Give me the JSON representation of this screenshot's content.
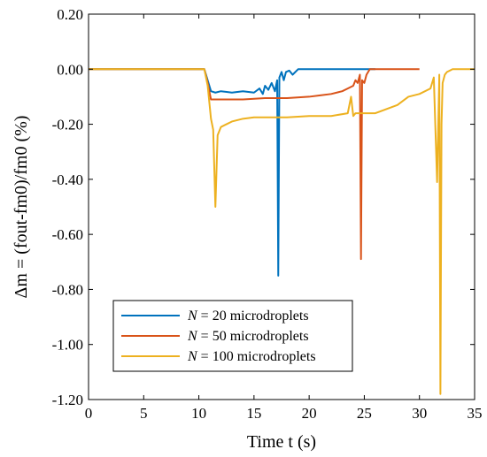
{
  "chart_data": {
    "type": "line",
    "title": "",
    "xlabel": "Time t (s)",
    "ylabel": "Δm = (fout-fm0)/fm0 (%)",
    "xlim": [
      0,
      35
    ],
    "ylim": [
      -1.2,
      0.2
    ],
    "x_ticks": [
      0,
      5,
      10,
      15,
      20,
      25,
      30,
      35
    ],
    "x_tick_labels": [
      "0",
      "5",
      "10",
      "15",
      "20",
      "25",
      "30",
      "35"
    ],
    "y_ticks": [
      0.2,
      0,
      -0.2,
      -0.4,
      -0.6,
      -0.8,
      -1.0,
      -1.2
    ],
    "y_tick_labels": [
      "0.20",
      "0.00",
      "-0.20",
      "-0.40",
      "-0.60",
      "-0.80",
      "-1.00",
      "-1.20"
    ],
    "grid": false,
    "legend_position": "bottom-left",
    "series": [
      {
        "name": "N = 20 microdroplets",
        "legend_italic": "N",
        "legend_rest": " = 20 microdroplets",
        "color": "#0072BD",
        "x": [
          0,
          10.5,
          10.8,
          11.1,
          11.5,
          12,
          13,
          14,
          15,
          15.5,
          15.8,
          16,
          16.3,
          16.6,
          16.9,
          17.1,
          17.2,
          17.3,
          17.4,
          17.5,
          17.7,
          17.9,
          18.2,
          18.5,
          19,
          20,
          21,
          22,
          23,
          24,
          25,
          26
        ],
        "y": [
          0,
          0,
          -0.04,
          -0.08,
          -0.085,
          -0.08,
          -0.085,
          -0.08,
          -0.085,
          -0.07,
          -0.09,
          -0.06,
          -0.075,
          -0.05,
          -0.08,
          -0.04,
          -0.75,
          -0.03,
          -0.02,
          -0.01,
          -0.04,
          -0.01,
          -0.005,
          -0.02,
          0,
          0,
          0,
          0,
          0,
          0,
          0,
          0
        ]
      },
      {
        "name": "N = 50 microdroplets",
        "legend_italic": "N",
        "legend_rest": " = 50 microdroplets",
        "color": "#D95319",
        "x": [
          0,
          10.5,
          10.8,
          11.1,
          11.5,
          12,
          14,
          16,
          18,
          20,
          21,
          22,
          23,
          23.5,
          24,
          24.2,
          24.4,
          24.6,
          24.7,
          24.8,
          25,
          25.2,
          25.5,
          26,
          27,
          28,
          30
        ],
        "y": [
          0,
          0,
          -0.05,
          -0.11,
          -0.11,
          -0.11,
          -0.11,
          -0.105,
          -0.105,
          -0.1,
          -0.095,
          -0.09,
          -0.08,
          -0.07,
          -0.06,
          -0.04,
          -0.05,
          -0.02,
          -0.69,
          -0.04,
          -0.05,
          -0.02,
          0,
          0,
          0,
          0,
          0
        ]
      },
      {
        "name": "N = 100 microdroplets",
        "legend_italic": "N",
        "legend_rest": " = 100 microdroplets",
        "color": "#EDB120",
        "x": [
          0,
          10.5,
          10.8,
          11.1,
          11.3,
          11.5,
          11.7,
          12,
          12.5,
          13,
          14,
          15,
          16,
          18,
          20,
          22,
          23.5,
          23.8,
          24,
          24.2,
          24.5,
          26,
          28,
          29,
          30,
          31,
          31.3,
          31.6,
          31.8,
          31.9,
          32.0,
          32.1,
          32.3,
          32.5,
          33,
          34,
          35
        ],
        "y": [
          0,
          0,
          -0.06,
          -0.18,
          -0.22,
          -0.5,
          -0.24,
          -0.21,
          -0.2,
          -0.19,
          -0.18,
          -0.175,
          -0.175,
          -0.175,
          -0.17,
          -0.17,
          -0.16,
          -0.1,
          -0.17,
          -0.16,
          -0.16,
          -0.16,
          -0.13,
          -0.1,
          -0.09,
          -0.07,
          -0.03,
          -0.41,
          -0.02,
          -1.18,
          -0.2,
          -0.05,
          -0.02,
          -0.01,
          0,
          0,
          0
        ]
      }
    ]
  }
}
